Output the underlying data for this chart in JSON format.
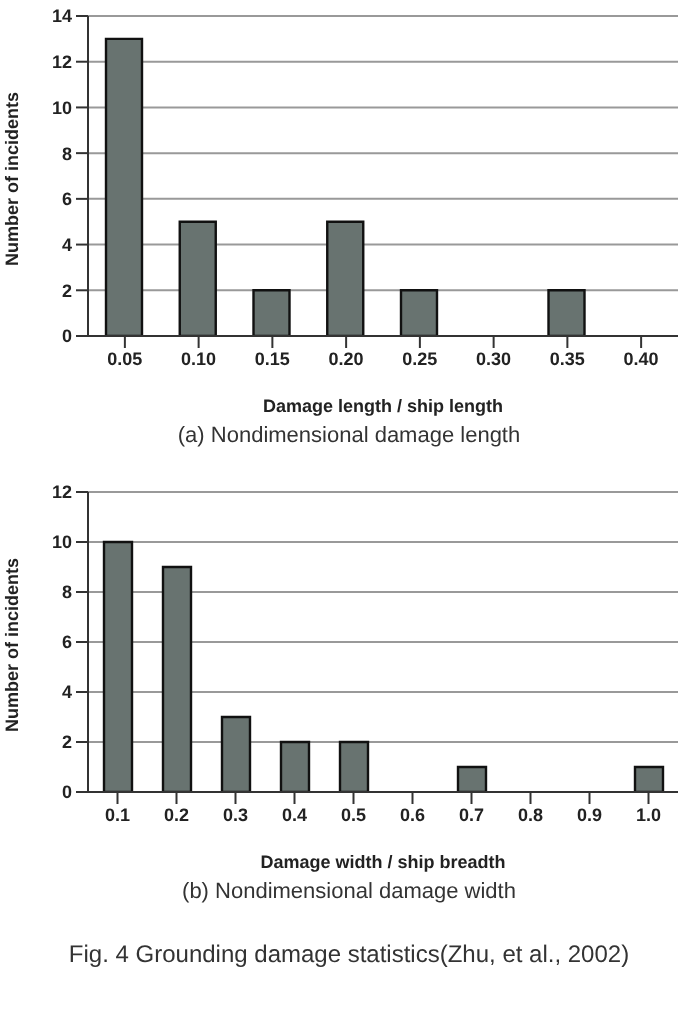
{
  "chart_data": [
    {
      "type": "bar",
      "categories": [
        "0.05",
        "0.10",
        "0.15",
        "0.20",
        "0.25",
        "0.30",
        "0.35",
        "0.40"
      ],
      "values": [
        13,
        5,
        2,
        5,
        2,
        0,
        2,
        0
      ],
      "color": "#687370",
      "xlabel": "Damage length / ship length",
      "ylabel": "Number of incidents",
      "ylim": [
        0,
        14
      ],
      "yticks": [
        0,
        2,
        4,
        6,
        8,
        10,
        12,
        14
      ],
      "grid": "y",
      "annotations": [
        "(a) Nondimensional damage length"
      ]
    },
    {
      "type": "bar",
      "categories": [
        "0.1",
        "0.2",
        "0.3",
        "0.4",
        "0.5",
        "0.6",
        "0.7",
        "0.8",
        "0.9",
        "1.0"
      ],
      "values": [
        10,
        9,
        3,
        2,
        2,
        0,
        1,
        0,
        0,
        1
      ],
      "color": "#687370",
      "xlabel": "Damage width / ship breadth",
      "ylabel": "Number of incidents",
      "ylim": [
        0,
        12
      ],
      "yticks": [
        0,
        2,
        4,
        6,
        8,
        10,
        12
      ],
      "grid": "y",
      "annotations": [
        "(b) Nondimensional damage width",
        "Fig. 4 Grounding damage statistics(Zhu, et al., 2002)"
      ]
    }
  ]
}
